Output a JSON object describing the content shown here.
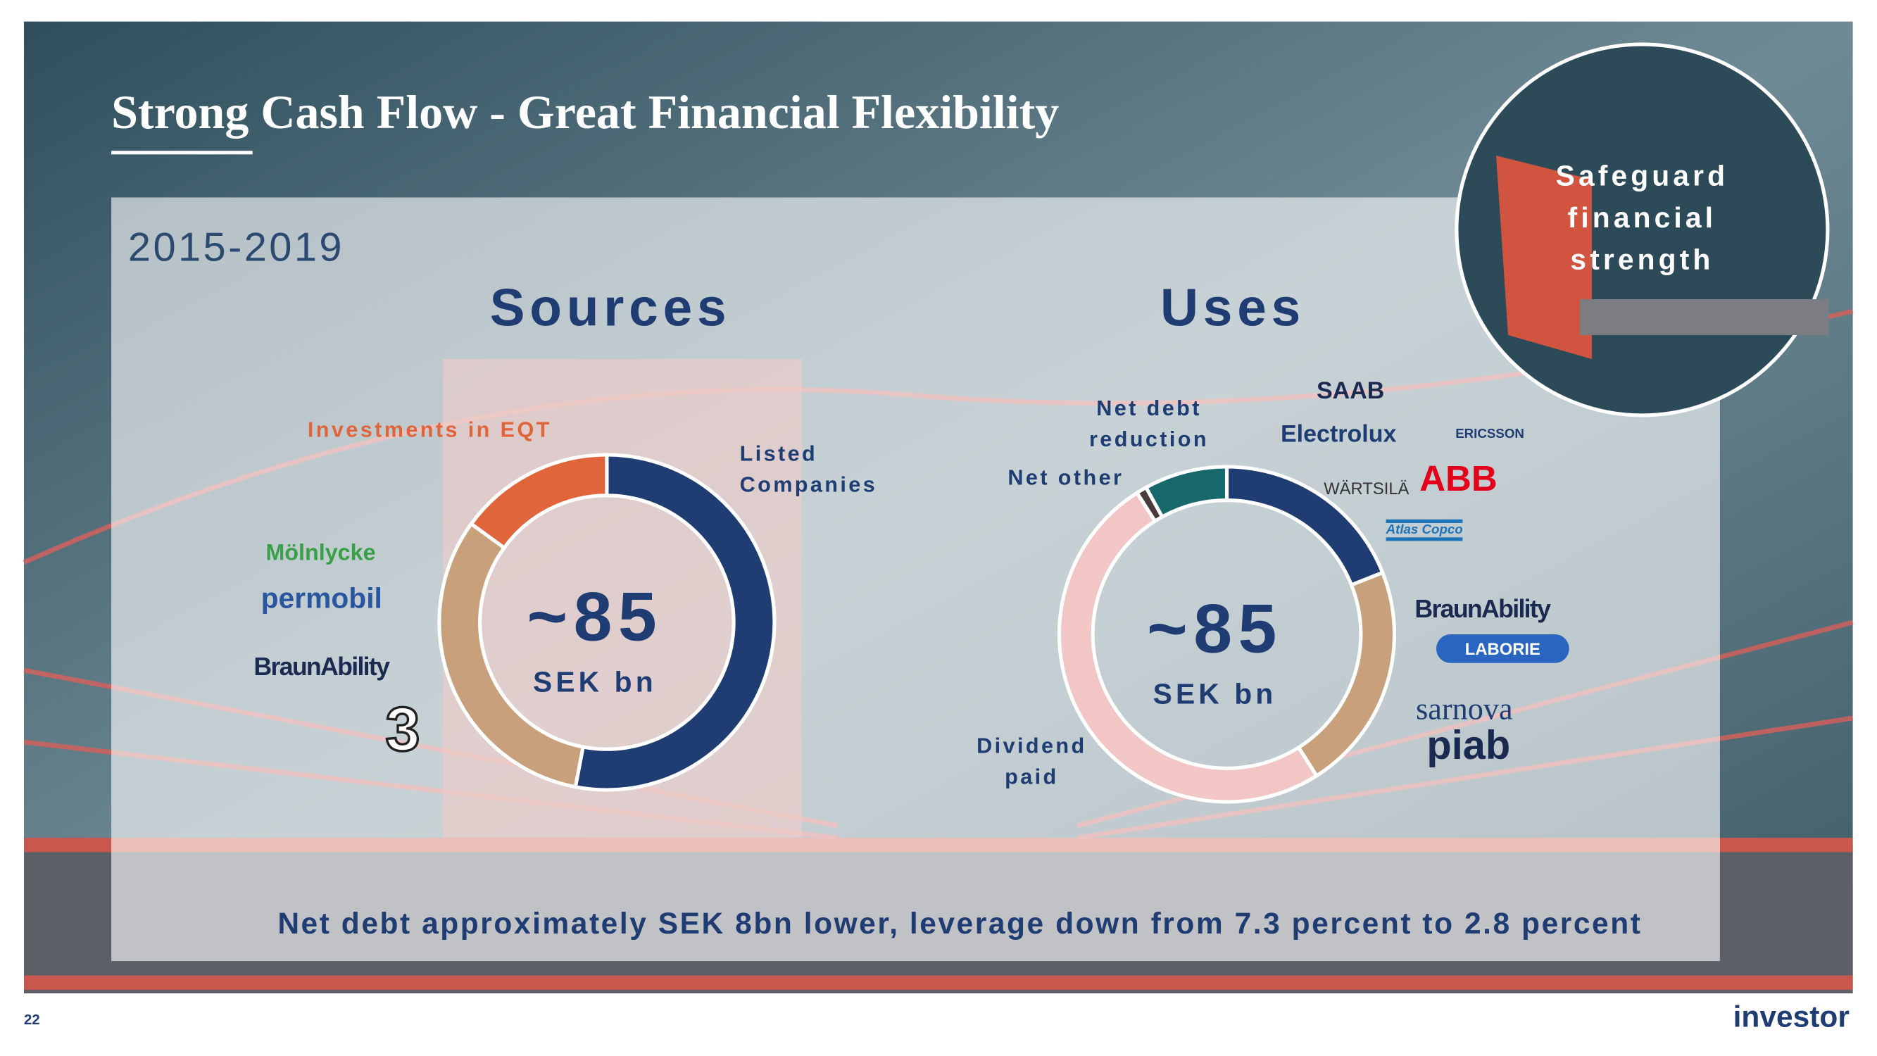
{
  "header": {
    "title": "Strong Cash Flow - Great Financial Flexibility"
  },
  "badge": "Safeguard financial strength",
  "period": "2015-2019",
  "chart_data": [
    {
      "type": "donut",
      "title": "Sources",
      "center_value": "~85",
      "center_unit": "SEK bn",
      "categories": [
        "Listed Companies",
        null,
        "Investments in EQT"
      ],
      "values": [
        53,
        32,
        15
      ],
      "colors": [
        "#1f3c73",
        "#c9a07c",
        "#e0653a"
      ]
    },
    {
      "type": "donut",
      "title": "Uses",
      "center_value": "~85",
      "center_unit": "SEK bn",
      "categories": [
        null,
        null,
        "Dividend paid",
        "Net other",
        "Net debt reduction"
      ],
      "values": [
        19,
        22,
        50,
        1,
        8
      ],
      "colors": [
        "#1f3c73",
        "#c9a07c",
        "#f2c6c4",
        "#4a3a3a",
        "#17686a"
      ]
    }
  ],
  "logos": {
    "sources": [
      "Mölnlycke",
      "permobil",
      "BraunAbility",
      "3"
    ],
    "uses_listed": [
      "SAAB",
      "ERICSSON",
      "Electrolux",
      "WÄRTSILÄ",
      "ABB",
      "Atlas Copco"
    ],
    "uses_unlisted": [
      "BraunAbility",
      "LABORIE",
      "sarnova",
      "piab"
    ]
  },
  "footer": {
    "note": "Net debt approximately SEK 8bn lower, leverage down from 7.3 percent to 2.8 percent",
    "page": "22",
    "brand": "investor"
  }
}
